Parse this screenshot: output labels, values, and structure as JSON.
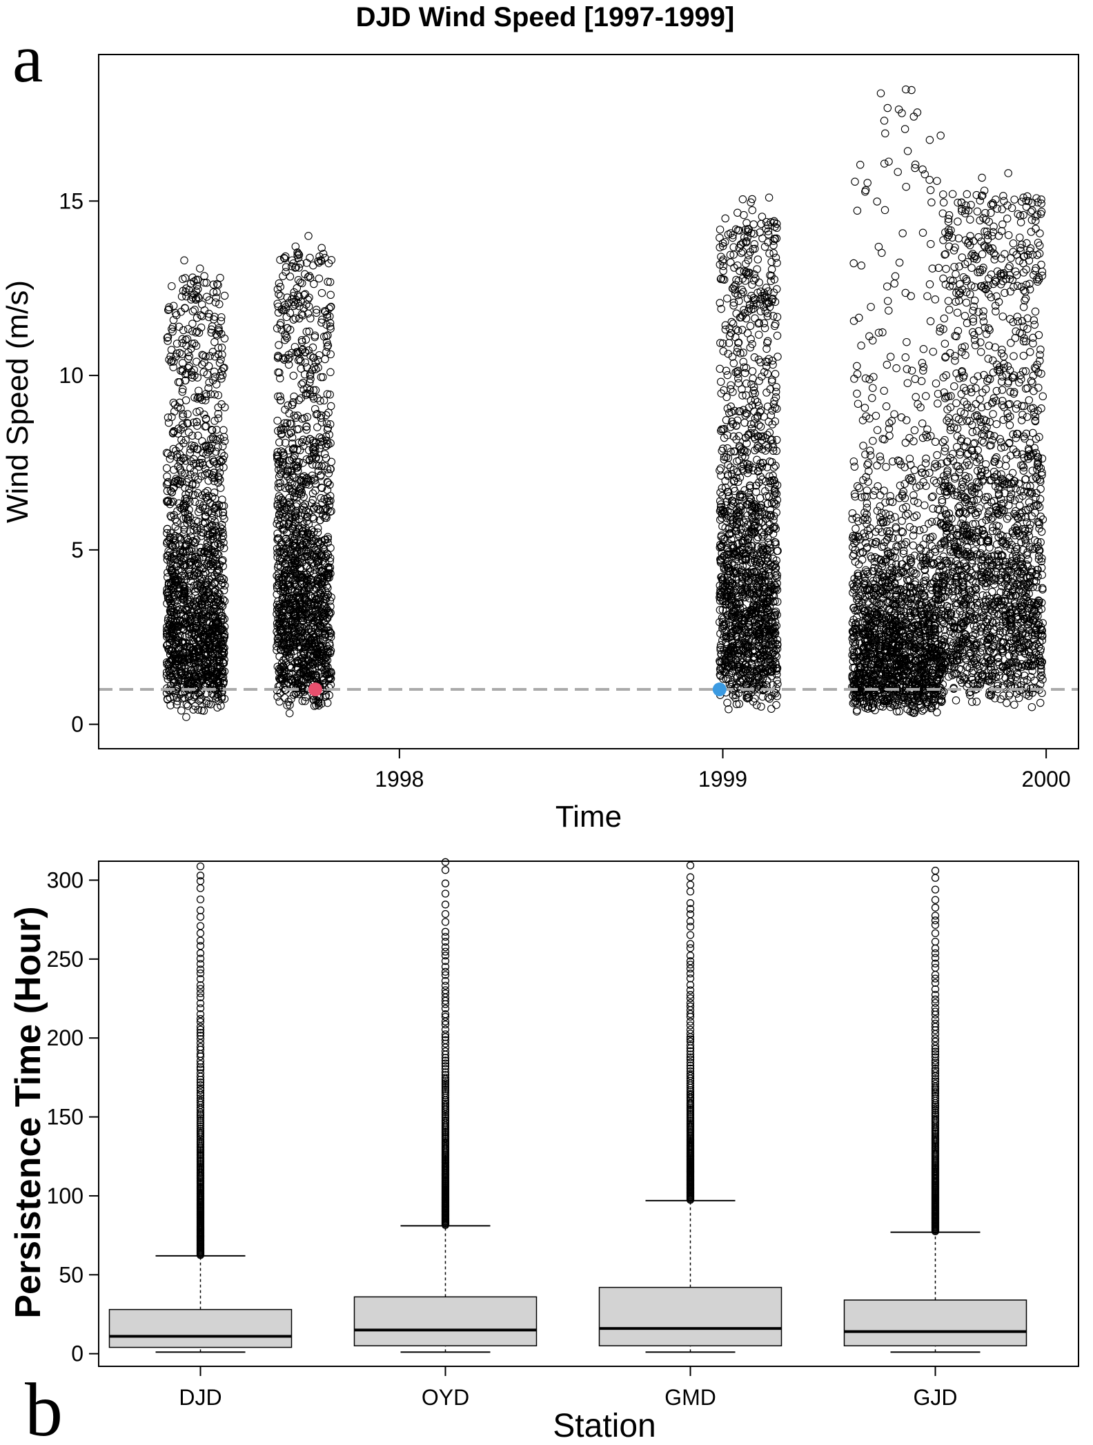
{
  "figure": {
    "panel_a_letter": "a",
    "panel_b_letter": "b"
  },
  "colors": {
    "points": "#000000",
    "threshold_line": "#aaaaaa",
    "marker_red": "#e8506e",
    "marker_blue": "#3b9ae1",
    "box_fill": "#d3d3d3"
  },
  "chart_data": [
    {
      "type": "scatter",
      "title": "DJD Wind Speed [1997-1999]",
      "xlabel": "Time",
      "ylabel": "Wind Speed (m/s)",
      "xlim": [
        1997.07,
        2000.1
      ],
      "ylim": [
        -0.7,
        19.2
      ],
      "x_ticks": [
        1998,
        1999,
        2000
      ],
      "x_tick_labels": [
        "1998",
        "1999",
        "2000"
      ],
      "y_ticks": [
        0,
        5,
        10,
        15
      ],
      "y_tick_labels": [
        "0",
        "5",
        "10",
        "15"
      ],
      "threshold": 1.0,
      "clusters": [
        {
          "x_start": 1997.28,
          "x_end": 1997.46,
          "median": 3.5,
          "max": 13.3
        },
        {
          "x_start": 1997.62,
          "x_end": 1997.79,
          "median": 4.0,
          "max": 14.0
        },
        {
          "x_start": 1998.99,
          "x_end": 1999.17,
          "median": 4.5,
          "max": 15.1
        },
        {
          "x_start": 1999.4,
          "x_end": 1999.68,
          "median": 2.5,
          "max": 18.2
        },
        {
          "x_start": 1999.68,
          "x_end": 1999.99,
          "median": 5.0,
          "max": 15.8
        }
      ],
      "highlight_points": [
        {
          "x": 1997.74,
          "y": 1.0,
          "color": "marker_red"
        },
        {
          "x": 1998.99,
          "y": 1.0,
          "color": "marker_blue"
        }
      ]
    },
    {
      "type": "box",
      "xlabel": "Station",
      "ylabel": "Persistence Time (Hour)",
      "ylim": [
        -8,
        312
      ],
      "y_ticks": [
        0,
        50,
        100,
        150,
        200,
        250,
        300
      ],
      "y_tick_labels": [
        "0",
        "50",
        "100",
        "150",
        "200",
        "250",
        "300"
      ],
      "categories": [
        "DJD",
        "OYD",
        "GMD",
        "GJD"
      ],
      "boxes": [
        {
          "name": "DJD",
          "min": 1,
          "q1": 4,
          "median": 11,
          "q3": 28,
          "whisker_high": 62,
          "outlier_max": 312
        },
        {
          "name": "OYD",
          "min": 1,
          "q1": 5,
          "median": 15,
          "q3": 36,
          "whisker_high": 81,
          "outlier_max": 312
        },
        {
          "name": "GMD",
          "min": 1,
          "q1": 5,
          "median": 16,
          "q3": 42,
          "whisker_high": 97,
          "outlier_max": 312
        },
        {
          "name": "GJD",
          "min": 1,
          "q1": 5,
          "median": 14,
          "q3": 34,
          "whisker_high": 77,
          "outlier_max": 312
        }
      ]
    }
  ]
}
